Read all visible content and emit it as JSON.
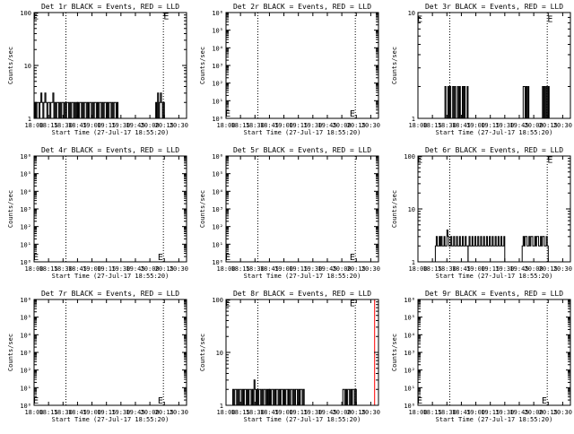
{
  "figure": {
    "background": "#ffffff",
    "axis_color": "#000000",
    "events_color": "#000000",
    "lld_color": "#ff0000"
  },
  "chart_data": [
    {
      "type": "line",
      "title": "Det 1r BLACK = Events, RED = LLD",
      "xlabel": "Start Time (27-Jul-17 18:55:20)",
      "ylabel": "Counts/sec",
      "xlim": [
        "18:00",
        "20:38"
      ],
      "x_ticks": [
        "18:00",
        "18:15",
        "18:30",
        "18:45",
        "19:00",
        "19:15",
        "19:30",
        "19:45",
        "20:00",
        "20:15",
        "20:30"
      ],
      "yscale": "log",
      "ylim": [
        1,
        100
      ],
      "y_ticks": [
        "1",
        "10",
        "100"
      ],
      "dotted_lines_x": [
        "18:33",
        "20:14",
        "20:38"
      ],
      "e_markers": [
        [
          "18:02",
          88
        ],
        [
          "20:17",
          88
        ]
      ],
      "series": [
        {
          "color": "#000000",
          "segments": [
            {
              "start": "18:00",
              "end": "18:03",
              "values": [
                1,
                2,
                1,
                2,
                2,
                1
              ]
            },
            {
              "start": "18:03",
              "end": "18:45",
              "values": [
                2,
                2,
                1,
                2,
                3,
                2,
                1,
                2,
                3,
                2,
                1,
                2,
                2,
                1,
                2,
                2,
                3,
                1,
                2,
                1,
                2,
                2,
                1,
                2,
                1,
                2,
                2,
                1,
                2,
                1,
                2,
                2,
                1,
                2,
                1,
                2,
                2,
                1,
                2,
                1,
                2
              ]
            },
            {
              "start": "18:45",
              "end": "19:27",
              "values": [
                2,
                1,
                2,
                2,
                1,
                2,
                1,
                2,
                2,
                1,
                2,
                1,
                2,
                2,
                1,
                2,
                1,
                2,
                2,
                1,
                2,
                1,
                2,
                2,
                1,
                2,
                1,
                2,
                2,
                1,
                2,
                1,
                2,
                2,
                1,
                2,
                1,
                2,
                2,
                1,
                2
              ]
            },
            {
              "start": "20:06",
              "end": "20:15",
              "values": [
                2,
                1,
                3,
                1,
                2,
                3,
                2,
                1,
                2
              ]
            }
          ]
        }
      ]
    },
    {
      "type": "line",
      "title": "Det 2r BLACK = Events, RED = LLD",
      "xlabel": "Start Time (27-Jul-17 18:55:20)",
      "ylabel": "Counts/sec",
      "xlim": [
        "18:00",
        "20:38"
      ],
      "x_ticks": [
        "18:00",
        "18:15",
        "18:30",
        "18:45",
        "19:00",
        "19:15",
        "19:30",
        "19:45",
        "20:00",
        "20:15",
        "20:30"
      ],
      "yscale": "log",
      "ylim": [
        1,
        1000000
      ],
      "y_ticks": [
        "10⁰",
        "10¹",
        "10²",
        "10³",
        "10⁴",
        "10⁵",
        "10⁶"
      ],
      "dotted_lines_x": [
        "18:33",
        "20:14",
        "20:38"
      ],
      "e_markers": [
        [
          "18:02",
          2
        ],
        [
          "20:11",
          2
        ]
      ],
      "series": []
    },
    {
      "type": "line",
      "title": "Det 3r BLACK = Events, RED = LLD",
      "xlabel": "Start Time (27-Jul-17 18:55:20)",
      "ylabel": "Counts/sec",
      "xlim": [
        "18:00",
        "20:38"
      ],
      "x_ticks": [
        "18:00",
        "18:15",
        "18:30",
        "18:45",
        "19:00",
        "19:15",
        "19:30",
        "19:45",
        "20:00",
        "20:15",
        "20:30"
      ],
      "yscale": "log",
      "ylim": [
        1,
        10
      ],
      "y_ticks": [
        "1",
        "10"
      ],
      "dotted_lines_x": [
        "18:33",
        "20:14",
        "20:38"
      ],
      "e_markers": [
        [
          "18:02",
          8.8
        ],
        [
          "20:17",
          8.8
        ]
      ],
      "series": [
        {
          "color": "#000000",
          "segments": [
            {
              "start": "18:27",
              "end": "18:52",
              "values": [
                1,
                2,
                1,
                1,
                2,
                1,
                2,
                1,
                1,
                2,
                1,
                2,
                1,
                1,
                2,
                1,
                2,
                1,
                1,
                2,
                1,
                2,
                1,
                1,
                2
              ]
            },
            {
              "start": "19:48",
              "end": "19:55",
              "values": [
                1,
                2,
                2,
                1,
                2,
                1,
                2
              ]
            },
            {
              "start": "20:08",
              "end": "20:16",
              "values": [
                1,
                2,
                1,
                2,
                1,
                2,
                1,
                2
              ]
            }
          ]
        }
      ]
    },
    {
      "type": "line",
      "title": "Det 4r BLACK = Events, RED = LLD",
      "xlabel": "Start Time (27-Jul-17 18:55:20)",
      "ylabel": "Counts/sec",
      "xlim": [
        "18:00",
        "20:38"
      ],
      "x_ticks": [
        "18:00",
        "18:15",
        "18:30",
        "18:45",
        "19:00",
        "19:15",
        "19:30",
        "19:45",
        "20:00",
        "20:15",
        "20:30"
      ],
      "yscale": "log",
      "ylim": [
        1,
        1000000
      ],
      "y_ticks": [
        "10⁰",
        "10¹",
        "10²",
        "10³",
        "10⁴",
        "10⁵",
        "10⁶"
      ],
      "dotted_lines_x": [
        "18:33",
        "20:14",
        "20:38"
      ],
      "e_markers": [
        [
          "18:02",
          2
        ],
        [
          "20:11",
          2
        ]
      ],
      "series": []
    },
    {
      "type": "line",
      "title": "Det 5r BLACK = Events, RED = LLD",
      "xlabel": "Start Time (27-Jul-17 18:55:20)",
      "ylabel": "Counts/sec",
      "xlim": [
        "18:00",
        "20:38"
      ],
      "x_ticks": [
        "18:00",
        "18:15",
        "18:30",
        "18:45",
        "19:00",
        "19:15",
        "19:30",
        "19:45",
        "20:00",
        "20:15",
        "20:30"
      ],
      "yscale": "log",
      "ylim": [
        1,
        1000000
      ],
      "y_ticks": [
        "10⁰",
        "10¹",
        "10²",
        "10³",
        "10⁴",
        "10⁵",
        "10⁶"
      ],
      "dotted_lines_x": [
        "18:33",
        "20:14",
        "20:38"
      ],
      "e_markers": [
        [
          "18:02",
          2
        ],
        [
          "20:11",
          2
        ]
      ],
      "series": []
    },
    {
      "type": "line",
      "title": "Det 6r BLACK = Events, RED = LLD",
      "xlabel": "Start Time (27-Jul-17 18:55:20)",
      "ylabel": "Counts/sec",
      "xlim": [
        "18:00",
        "20:38"
      ],
      "x_ticks": [
        "18:00",
        "18:15",
        "18:30",
        "18:45",
        "19:00",
        "19:15",
        "19:30",
        "19:45",
        "20:00",
        "20:15",
        "20:30"
      ],
      "yscale": "log",
      "ylim": [
        1,
        100
      ],
      "y_ticks": [
        "1",
        "10",
        "100"
      ],
      "dotted_lines_x": [
        "18:33",
        "20:14",
        "20:38"
      ],
      "e_markers": [
        [
          "18:02",
          88
        ],
        [
          "20:17",
          88
        ]
      ],
      "series": [
        {
          "color": "#000000",
          "segments": [
            {
              "start": "18:18",
              "end": "18:52",
              "values": [
                2,
                3,
                2,
                2,
                3,
                2,
                3,
                2,
                2,
                3,
                2,
                2,
                4,
                3,
                2,
                2,
                3,
                2,
                2,
                3,
                2,
                2,
                3,
                2,
                2,
                3,
                2,
                2,
                3,
                2,
                2,
                3,
                2,
                2
              ]
            },
            {
              "start": "18:52",
              "end": "19:30",
              "values": [
                2,
                3,
                2,
                2,
                3,
                2,
                2,
                3,
                2,
                2,
                3,
                2,
                2,
                3,
                2,
                2,
                3,
                2,
                2,
                3,
                2,
                2,
                3,
                2,
                2,
                3,
                2,
                2,
                3,
                2,
                2,
                3,
                2,
                2,
                3,
                2,
                2,
                3
              ]
            },
            {
              "start": "19:48",
              "end": "20:15",
              "values": [
                2,
                3,
                2,
                3,
                3,
                2,
                2,
                3,
                2,
                3,
                3,
                2,
                2,
                3,
                2,
                3,
                3,
                2,
                2,
                3,
                2,
                3,
                3,
                2,
                2,
                3,
                2
              ]
            }
          ]
        }
      ]
    },
    {
      "type": "line",
      "title": "Det 7r BLACK = Events, RED = LLD",
      "xlabel": "Start Time (27-Jul-17 18:55:20)",
      "ylabel": "Counts/sec",
      "xlim": [
        "18:00",
        "20:38"
      ],
      "x_ticks": [
        "18:00",
        "18:15",
        "18:30",
        "18:45",
        "19:00",
        "19:15",
        "19:30",
        "19:45",
        "20:00",
        "20:15",
        "20:30"
      ],
      "yscale": "log",
      "ylim": [
        1,
        1000000
      ],
      "y_ticks": [
        "10⁰",
        "10¹",
        "10²",
        "10³",
        "10⁴",
        "10⁵",
        "10⁶"
      ],
      "dotted_lines_x": [
        "18:33",
        "20:14",
        "20:38"
      ],
      "e_markers": [
        [
          "18:02",
          2
        ],
        [
          "20:11",
          2
        ]
      ],
      "series": []
    },
    {
      "type": "line",
      "title": "Det 8r BLACK = Events, RED = LLD",
      "xlabel": "Start Time (27-Jul-17 18:55:20)",
      "ylabel": "Counts/sec",
      "xlim": [
        "18:00",
        "20:38"
      ],
      "x_ticks": [
        "18:00",
        "18:15",
        "18:30",
        "18:45",
        "19:00",
        "19:15",
        "19:30",
        "19:45",
        "20:00",
        "20:15",
        "20:30"
      ],
      "yscale": "log",
      "ylim": [
        1,
        100
      ],
      "y_ticks": [
        "1",
        "10",
        "100"
      ],
      "dotted_lines_x": [
        "18:33",
        "20:14",
        "20:38"
      ],
      "e_markers": [
        [
          "18:02",
          88
        ],
        [
          "20:11",
          88
        ]
      ],
      "series": [
        {
          "color": "#000000",
          "segments": [
            {
              "start": "18:06",
              "end": "18:45",
              "values": [
                1,
                2,
                1,
                2,
                2,
                1,
                2,
                1,
                2,
                2,
                1,
                2,
                1,
                2,
                2,
                1,
                2,
                1,
                2,
                2,
                1,
                2,
                1,
                3,
                2,
                1,
                2,
                1,
                2,
                2,
                1,
                2,
                1,
                2,
                2,
                1,
                2,
                1,
                2
              ]
            },
            {
              "start": "18:45",
              "end": "19:22",
              "values": [
                2,
                1,
                2,
                2,
                1,
                2,
                1,
                2,
                2,
                1,
                2,
                1,
                2,
                2,
                1,
                2,
                1,
                2,
                2,
                1,
                2,
                1,
                2,
                2,
                1,
                2,
                1,
                2,
                2,
                1,
                2,
                1,
                2,
                2,
                1,
                2,
                1
              ]
            },
            {
              "start": "20:00",
              "end": "20:15",
              "values": [
                1,
                2,
                2,
                1,
                2,
                1,
                2,
                2,
                1,
                2,
                1,
                2,
                2,
                1,
                2
              ]
            }
          ]
        },
        {
          "color": "#ff0000",
          "segments": [
            {
              "start": "20:34",
              "end": "20:38",
              "values": [
                100,
                100
              ]
            }
          ]
        }
      ]
    },
    {
      "type": "line",
      "title": "Det 9r BLACK = Events, RED = LLD",
      "xlabel": "Start Time (27-Jul-17 18:55:20)",
      "ylabel": "Counts/sec",
      "xlim": [
        "18:00",
        "20:38"
      ],
      "x_ticks": [
        "18:00",
        "18:15",
        "18:30",
        "18:45",
        "19:00",
        "19:15",
        "19:30",
        "19:45",
        "20:00",
        "20:15",
        "20:30"
      ],
      "yscale": "log",
      "ylim": [
        1,
        1000000
      ],
      "y_ticks": [
        "10⁰",
        "10¹",
        "10²",
        "10³",
        "10⁴",
        "10⁵",
        "10⁶"
      ],
      "dotted_lines_x": [
        "18:33",
        "20:14",
        "20:38"
      ],
      "e_markers": [
        [
          "18:02",
          2
        ],
        [
          "20:11",
          2
        ]
      ],
      "series": []
    }
  ]
}
